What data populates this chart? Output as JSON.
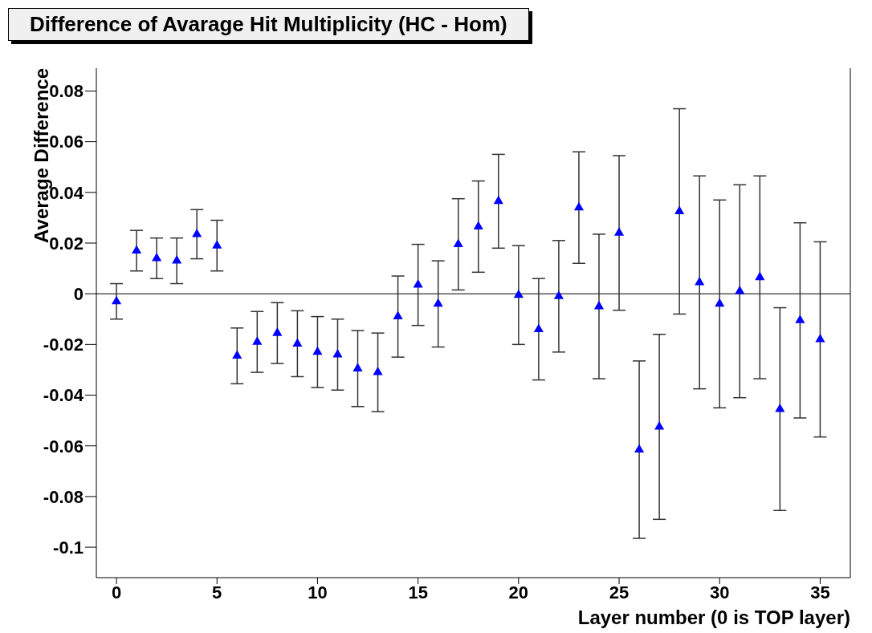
{
  "chart_data": {
    "type": "scatter",
    "title": "Difference of Avarage Hit Multiplicity (HC - Hom)",
    "xlabel": "Layer number (0 is TOP layer)",
    "ylabel": "Average Difference",
    "x": [
      0,
      1,
      2,
      3,
      4,
      5,
      6,
      7,
      8,
      9,
      10,
      11,
      12,
      13,
      14,
      15,
      16,
      17,
      18,
      19,
      20,
      21,
      22,
      23,
      24,
      25,
      26,
      27,
      28,
      29,
      30,
      31,
      32,
      33,
      34,
      35
    ],
    "series": [
      {
        "color": "#0000ff",
        "values": [
          -0.003,
          0.017,
          0.014,
          0.013,
          0.0235,
          0.019,
          -0.0245,
          -0.019,
          -0.0155,
          -0.0197,
          -0.023,
          -0.024,
          -0.0295,
          -0.031,
          -0.009,
          0.0035,
          -0.004,
          0.0195,
          0.0265,
          0.0365,
          -0.0005,
          -0.014,
          -0.001,
          0.034,
          -0.005,
          0.024,
          -0.0615,
          -0.0525,
          0.0325,
          0.0045,
          -0.004,
          0.001,
          0.0065,
          -0.0455,
          -0.0105,
          -0.018
        ],
        "errors": [
          0.007,
          0.008,
          0.008,
          0.009,
          0.0097,
          0.01,
          0.011,
          0.012,
          0.012,
          0.013,
          0.014,
          0.014,
          0.015,
          0.0155,
          0.016,
          0.016,
          0.017,
          0.018,
          0.018,
          0.0185,
          0.0195,
          0.02,
          0.022,
          0.022,
          0.0285,
          0.0305,
          0.035,
          0.0365,
          0.0405,
          0.042,
          0.041,
          0.042,
          0.04,
          0.04,
          0.0385,
          0.0385
        ]
      }
    ],
    "marker": "triangle",
    "xlim": [
      -1,
      36.5
    ],
    "xticks": [
      0,
      5,
      10,
      15,
      20,
      25,
      30,
      35
    ],
    "ylim": [
      -0.112,
      0.089
    ],
    "yticks": [
      -0.1,
      -0.08,
      -0.06,
      -0.04,
      -0.02,
      0,
      0.02,
      0.04,
      0.06,
      0.08
    ],
    "ref_lines": [
      {
        "axis": "y",
        "value": 0,
        "color": "#000000"
      }
    ]
  }
}
